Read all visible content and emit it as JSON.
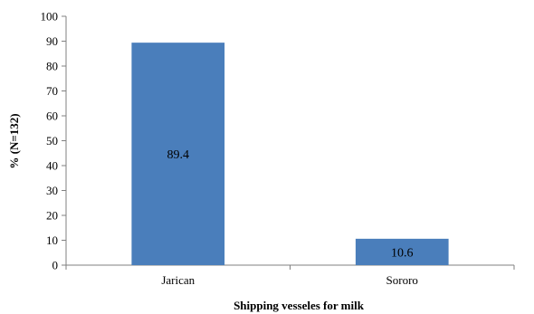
{
  "chart_data": {
    "type": "bar",
    "categories": [
      "Jarican",
      "Sororo"
    ],
    "values": [
      89.4,
      10.6
    ],
    "data_labels": [
      "89.4",
      "10.6"
    ],
    "title": "",
    "xlabel": "Shipping vesseles for milk",
    "ylabel": "% (N=132)",
    "ylim": [
      0,
      100
    ],
    "yticks": [
      0,
      10,
      20,
      30,
      40,
      50,
      60,
      70,
      80,
      90,
      100
    ],
    "ytick_labels": [
      "0",
      "10",
      "20",
      "30",
      "40",
      "50",
      "60",
      "70",
      "80",
      "90",
      "100"
    ],
    "grid": false,
    "legend": "none",
    "bar_color": "#4A7EBB"
  }
}
